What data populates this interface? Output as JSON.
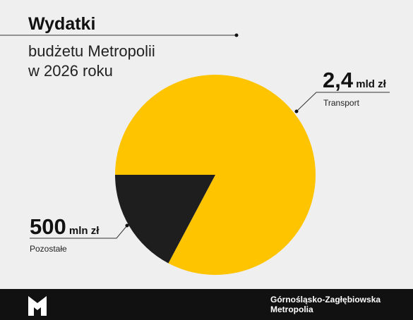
{
  "chart_data": {
    "type": "pie",
    "title": "Wydatki",
    "subtitle": [
      "budżetu Metropolii",
      "w 2026 roku"
    ],
    "categories": [
      "Transport",
      "Pozostałe"
    ],
    "values": [
      2400,
      500
    ],
    "value_labels": [
      "2,4 mld zł",
      "500 mln zł"
    ],
    "colors": [
      "#ffc400",
      "#1e1e1e"
    ]
  },
  "footer": {
    "brand": [
      "Górnośląsko-Zagłębiowska",
      "Metropolia"
    ]
  }
}
